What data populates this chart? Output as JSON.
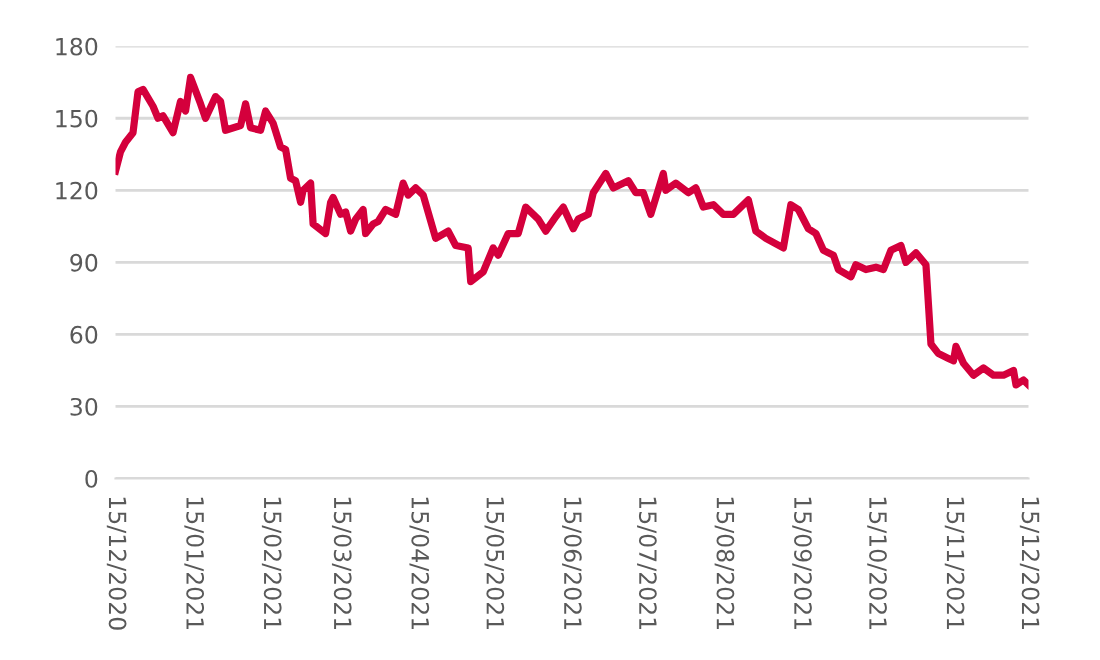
{
  "chart_data": {
    "type": "line",
    "xlim": [
      "2020-12-15",
      "2021-12-15"
    ],
    "xticks": [
      {
        "value": "2020-12-15",
        "label": "15/12/2020"
      },
      {
        "value": "2021-01-15",
        "label": "15/01/2021"
      },
      {
        "value": "2021-02-15",
        "label": "15/02/2021"
      },
      {
        "value": "2021-03-15",
        "label": "15/03/2021"
      },
      {
        "value": "2021-04-15",
        "label": "15/04/2021"
      },
      {
        "value": "2021-05-15",
        "label": "15/05/2021"
      },
      {
        "value": "2021-06-15",
        "label": "15/06/2021"
      },
      {
        "value": "2021-07-15",
        "label": "15/07/2021"
      },
      {
        "value": "2021-08-15",
        "label": "15/08/2021"
      },
      {
        "value": "2021-09-15",
        "label": "15/09/2021"
      },
      {
        "value": "2021-10-15",
        "label": "15/10/2021"
      },
      {
        "value": "2021-11-15",
        "label": "15/11/2021"
      },
      {
        "value": "2021-12-15",
        "label": "15/12/2021"
      }
    ],
    "ylim": [
      0,
      180
    ],
    "yticks": [
      0,
      30,
      60,
      90,
      120,
      150,
      180
    ],
    "grid": "y",
    "legend": false,
    "marker": "none",
    "line_style": "solid",
    "x": [
      "2020-12-15",
      "2020-12-17",
      "2020-12-19",
      "2020-12-22",
      "2020-12-24",
      "2020-12-26",
      "2020-12-30",
      "2021-01-01",
      "2021-01-03",
      "2021-01-07",
      "2021-01-10",
      "2021-01-12",
      "2021-01-14",
      "2021-01-18",
      "2021-01-20",
      "2021-01-24",
      "2021-01-26",
      "2021-01-28",
      "2021-02-03",
      "2021-02-05",
      "2021-02-07",
      "2021-02-11",
      "2021-02-13",
      "2021-02-16",
      "2021-02-19",
      "2021-02-21",
      "2021-02-23",
      "2021-02-25",
      "2021-02-27",
      "2021-02-28",
      "2021-03-03",
      "2021-03-04",
      "2021-03-09",
      "2021-03-11",
      "2021-03-12",
      "2021-03-15",
      "2021-03-17",
      "2021-03-19",
      "2021-03-21",
      "2021-03-24",
      "2021-03-25",
      "2021-03-28",
      "2021-03-30",
      "2021-04-02",
      "2021-04-06",
      "2021-04-09",
      "2021-04-11",
      "2021-04-14",
      "2021-04-17",
      "2021-04-22",
      "2021-04-27",
      "2021-04-30",
      "2021-05-05",
      "2021-05-06",
      "2021-05-11",
      "2021-05-15",
      "2021-05-17",
      "2021-05-21",
      "2021-05-25",
      "2021-05-28",
      "2021-06-02",
      "2021-06-05",
      "2021-06-09",
      "2021-06-12",
      "2021-06-16",
      "2021-06-18",
      "2021-06-22",
      "2021-06-24",
      "2021-06-29",
      "2021-07-02",
      "2021-07-08",
      "2021-07-11",
      "2021-07-14",
      "2021-07-17",
      "2021-07-22",
      "2021-07-23",
      "2021-07-27",
      "2021-08-01",
      "2021-08-04",
      "2021-08-07",
      "2021-08-11",
      "2021-08-15",
      "2021-08-19",
      "2021-08-25",
      "2021-08-28",
      "2021-09-01",
      "2021-09-08",
      "2021-09-11",
      "2021-09-14",
      "2021-09-18",
      "2021-09-21",
      "2021-09-24",
      "2021-09-28",
      "2021-09-30",
      "2021-10-05",
      "2021-10-07",
      "2021-10-11",
      "2021-10-15",
      "2021-10-18",
      "2021-10-21",
      "2021-10-25",
      "2021-10-27",
      "2021-10-31",
      "2021-11-04",
      "2021-11-06",
      "2021-11-09",
      "2021-11-13",
      "2021-11-15",
      "2021-11-16",
      "2021-11-19",
      "2021-11-23",
      "2021-11-27",
      "2021-12-01",
      "2021-12-05",
      "2021-12-09",
      "2021-12-10",
      "2021-12-13",
      "2021-12-15"
    ],
    "series": [
      {
        "color": "#d4003c",
        "values": [
          128,
          136,
          140,
          144,
          161,
          162,
          155,
          150,
          151,
          144,
          157,
          153,
          167,
          156,
          150,
          159,
          157,
          145,
          147,
          156,
          146,
          145,
          153,
          148,
          138,
          137,
          125,
          124,
          115,
          120,
          123,
          106,
          102,
          115,
          117,
          110,
          111,
          103,
          108,
          112,
          102,
          106,
          107,
          112,
          110,
          123,
          118,
          121,
          118,
          100,
          103,
          97,
          96,
          82,
          86,
          96,
          93,
          102,
          102,
          113,
          108,
          103,
          109,
          113,
          104,
          108,
          110,
          119,
          127,
          121,
          124,
          119,
          119,
          110,
          127,
          120,
          123,
          119,
          121,
          113,
          114,
          110,
          110,
          116,
          103,
          100,
          96,
          114,
          112,
          104,
          102,
          95,
          93,
          87,
          84,
          89,
          87,
          88,
          87,
          95,
          97,
          90,
          94,
          89,
          56,
          52,
          50,
          49,
          55,
          48,
          43,
          46,
          43,
          43,
          45,
          39,
          41,
          39
        ]
      }
    ]
  }
}
